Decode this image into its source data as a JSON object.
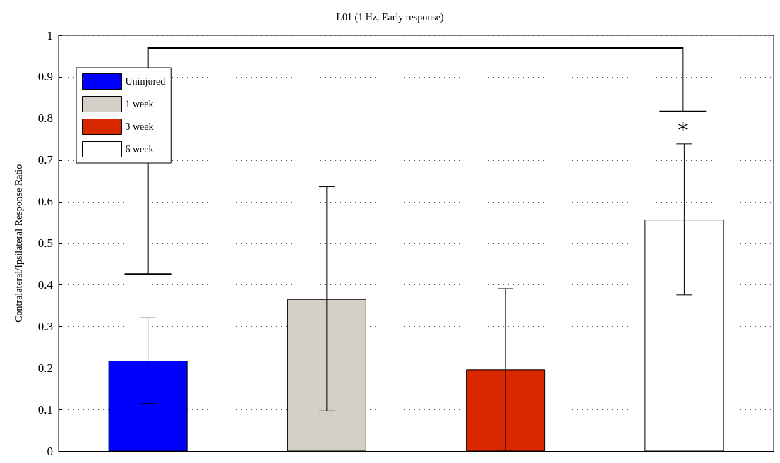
{
  "chart_data": {
    "type": "bar",
    "title": "L01 (1 Hz, Early response)",
    "ylabel": "Contralateral/Ipsilateral Response Ratio",
    "categories": [
      null,
      null,
      null,
      null
    ],
    "series": [
      {
        "name": "Uninjured",
        "color": "#0000ff",
        "values": [
          0.218,
          null,
          null,
          null
        ],
        "errors": [
          [
            0.115,
            0.321
          ],
          null,
          null,
          null
        ]
      },
      {
        "name": "1 week",
        "color": "#d4d0c8",
        "values": [
          null,
          0.366,
          null,
          null
        ],
        "errors": [
          null,
          [
            0.097,
            0.636
          ],
          null,
          null
        ]
      },
      {
        "name": "3 week",
        "color": "#d92800",
        "values": [
          null,
          null,
          0.197,
          null
        ],
        "errors": [
          null,
          null,
          [
            0.003,
            0.391
          ],
          null
        ]
      },
      {
        "name": "6 week",
        "color": "#ffffff",
        "values": [
          null,
          null,
          null,
          0.557
        ],
        "errors": [
          null,
          null,
          null,
          [
            0.376,
            0.739
          ]
        ]
      }
    ],
    "ylim": [
      0,
      1
    ],
    "yticks": [
      0,
      0.1,
      0.2,
      0.3,
      0.4,
      0.5,
      0.6,
      0.7,
      0.8,
      0.9,
      1
    ],
    "grid": "y",
    "legend": "top left",
    "annotations": [
      "*"
    ]
  }
}
